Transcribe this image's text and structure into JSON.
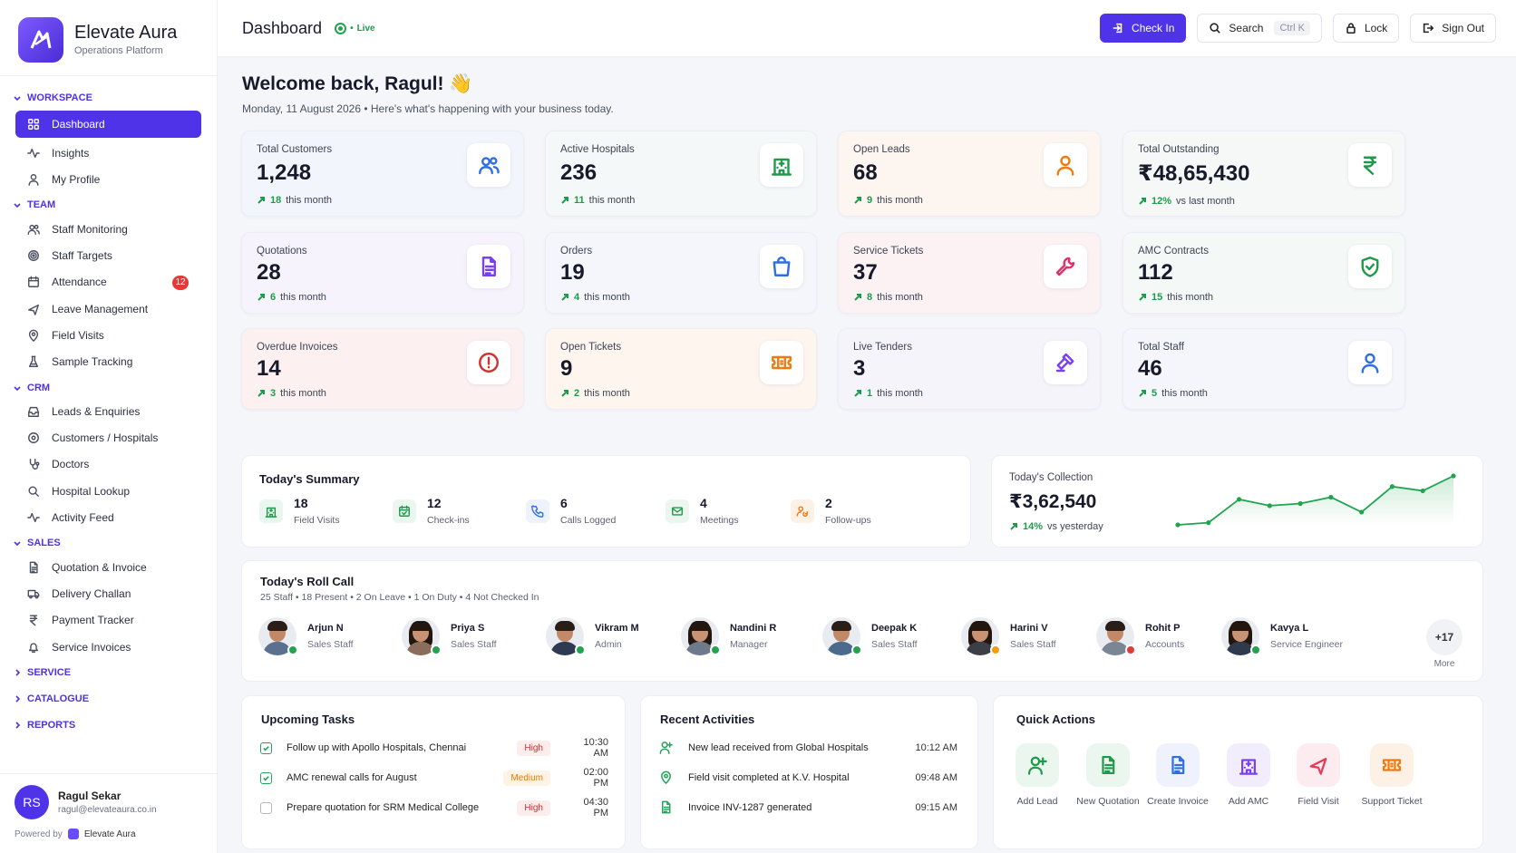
{
  "brand": {
    "title": "Elevate Aura",
    "subtitle": "Operations Platform"
  },
  "sidebar": {
    "sections": [
      {
        "label": "WORKSPACE",
        "expanded": true,
        "items": [
          {
            "label": "Dashboard",
            "icon": "grid-icon",
            "active": true
          },
          {
            "label": "Insights",
            "icon": "pulse-icon"
          },
          {
            "label": "My Profile",
            "icon": "user-icon"
          }
        ]
      },
      {
        "label": "TEAM",
        "expanded": true,
        "items": [
          {
            "label": "Staff Monitoring",
            "icon": "users-icon"
          },
          {
            "label": "Staff Targets",
            "icon": "target-icon"
          },
          {
            "label": "Attendance",
            "icon": "calendar-icon",
            "badge": "12"
          },
          {
            "label": "Leave Management",
            "icon": "plane-icon"
          },
          {
            "label": "Field Visits",
            "icon": "pin-icon"
          },
          {
            "label": "Sample Tracking",
            "icon": "flask-icon"
          }
        ]
      },
      {
        "label": "CRM",
        "expanded": true,
        "items": [
          {
            "label": "Leads & Enquiries",
            "icon": "inbox-icon"
          },
          {
            "label": "Customers / Hospitals",
            "icon": "circle-icon"
          },
          {
            "label": "Doctors",
            "icon": "stethoscope-icon"
          },
          {
            "label": "Hospital Lookup",
            "icon": "search-icon"
          },
          {
            "label": "Activity Feed",
            "icon": "pulse-icon"
          }
        ]
      },
      {
        "label": "SALES",
        "expanded": true,
        "items": [
          {
            "label": "Quotation & Invoice",
            "icon": "document-icon"
          },
          {
            "label": "Delivery Challan",
            "icon": "truck-icon"
          },
          {
            "label": "Payment Tracker",
            "icon": "rupee-icon"
          },
          {
            "label": "Service Invoices",
            "icon": "bell-icon"
          }
        ]
      },
      {
        "label": "SERVICE",
        "expanded": false,
        "items": []
      },
      {
        "label": "CATALOGUE",
        "expanded": false,
        "items": []
      },
      {
        "label": "REPORTS",
        "expanded": false,
        "items": []
      }
    ],
    "user": {
      "initials": "RS",
      "name": "Ragul Sekar",
      "email": "ragul@elevateaura.co.in"
    },
    "powered_by": "Powered by",
    "powered_brand": "Elevate Aura"
  },
  "topbar": {
    "title": "Dashboard",
    "live_label": "Live",
    "checkin_label": "Check In",
    "search_label": "Search",
    "search_shortcut": "Ctrl K",
    "lock_label": "Lock",
    "signout_label": "Sign Out"
  },
  "welcome": {
    "title": "Welcome back, Ragul! 👋",
    "subtitle": "Monday, 11 August 2026 • Here's what's happening with your business today."
  },
  "stats": [
    {
      "label": "Total Customers",
      "value": "1,248",
      "trend": "18",
      "trend_text": "this month",
      "icon": "users-icon",
      "color": "#2f6fe0",
      "bg": "#f3f5fd"
    },
    {
      "label": "Active Hospitals",
      "value": "236",
      "trend": "11",
      "trend_text": "this month",
      "icon": "hospital-icon",
      "color": "#1f9a4a",
      "bg": "#f4f8f8"
    },
    {
      "label": "Open Leads",
      "value": "68",
      "trend": "9",
      "trend_text": "this month",
      "icon": "user-icon",
      "color": "#f07a10",
      "bg": "#fdf6f0"
    },
    {
      "label": "Total Outstanding",
      "value": "₹48,65,430",
      "trend": "12%",
      "trend_text": "vs last month",
      "icon": "rupee-icon",
      "color": "#1f9a4a",
      "bg": "#f5f8f7"
    },
    {
      "label": "Quotations",
      "value": "28",
      "trend": "6",
      "trend_text": "this month",
      "icon": "document-icon",
      "color": "#7a3ff0",
      "bg": "#f6f3fd"
    },
    {
      "label": "Orders",
      "value": "19",
      "trend": "4",
      "trend_text": "this month",
      "icon": "bag-icon",
      "color": "#2f6fe0",
      "bg": "#f4f6fb"
    },
    {
      "label": "Service Tickets",
      "value": "37",
      "trend": "8",
      "trend_text": "this month",
      "icon": "wrench-icon",
      "color": "#e0306a",
      "bg": "#fcf1f3"
    },
    {
      "label": "AMC Contracts",
      "value": "112",
      "trend": "15",
      "trend_text": "this month",
      "icon": "shield-icon",
      "color": "#1f9a4a",
      "bg": "#f4f8f7"
    },
    {
      "label": "Overdue Invoices",
      "value": "14",
      "trend": "3",
      "trend_text": "this month",
      "icon": "alert-icon",
      "color": "#d32f2f",
      "bg": "#fcf0f0"
    },
    {
      "label": "Open Tickets",
      "value": "9",
      "trend": "2",
      "trend_text": "this month",
      "icon": "ticket-icon",
      "color": "#f07a10",
      "bg": "#fdf5ee"
    },
    {
      "label": "Live Tenders",
      "value": "3",
      "trend": "1",
      "trend_text": "this month",
      "icon": "gavel-icon",
      "color": "#7a3ff0",
      "bg": "#f5f4fb"
    },
    {
      "label": "Total Staff",
      "value": "46",
      "trend": "5",
      "trend_text": "this month",
      "icon": "user-icon",
      "color": "#2f6fe0",
      "bg": "#f4f6fb"
    }
  ],
  "summary": {
    "title": "Today's Summary",
    "items": [
      {
        "value": "18",
        "label": "Field Visits",
        "icon": "hospital-icon",
        "color": "#1f9a4a",
        "bg": "#eaf6ee"
      },
      {
        "value": "12",
        "label": "Check-ins",
        "icon": "calendar-check-icon",
        "color": "#1f9a4a",
        "bg": "#eaf6ee"
      },
      {
        "value": "6",
        "label": "Calls Logged",
        "icon": "phone-icon",
        "color": "#2f6fe0",
        "bg": "#edf2fd"
      },
      {
        "value": "4",
        "label": "Meetings",
        "icon": "mail-icon",
        "color": "#1f9a4a",
        "bg": "#eaf6ee"
      },
      {
        "value": "2",
        "label": "Follow-ups",
        "icon": "follow-up-icon",
        "color": "#f07a10",
        "bg": "#fdf1e6"
      }
    ]
  },
  "collection": {
    "label": "Today's Collection",
    "value": "₹3,62,540",
    "trend": "14%",
    "trend_text": "vs yesterday",
    "sparkline": [
      2,
      2.5,
      8,
      6.5,
      7,
      8.5,
      5,
      11,
      10,
      13.5
    ]
  },
  "rollcall": {
    "title": "Today's Roll Call",
    "subtitle": "25 Staff • 18 Present • 2 On Leave • 1 On Duty • 4 Not Checked In",
    "people": [
      {
        "name": "Arjun N",
        "role": "Sales Staff",
        "status_color": "#22a44f",
        "gender": "m",
        "shirt": "#5b6f8f"
      },
      {
        "name": "Priya S",
        "role": "Sales Staff",
        "status_color": "#22a44f",
        "gender": "f",
        "shirt": "#8a6d5a"
      },
      {
        "name": "Vikram M",
        "role": "Admin",
        "status_color": "#22a44f",
        "gender": "m",
        "shirt": "#2d3a52"
      },
      {
        "name": "Nandini R",
        "role": "Manager",
        "status_color": "#22a44f",
        "gender": "f",
        "shirt": "#6e7a8a"
      },
      {
        "name": "Deepak K",
        "role": "Sales Staff",
        "status_color": "#22a44f",
        "gender": "m",
        "shirt": "#4c6a8c"
      },
      {
        "name": "Harini V",
        "role": "Sales Staff",
        "status_color": "#f39c12",
        "gender": "f",
        "shirt": "#3d3f48"
      },
      {
        "name": "Rohit P",
        "role": "Accounts",
        "status_color": "#e53935",
        "gender": "m",
        "shirt": "#7a8694"
      },
      {
        "name": "Kavya L",
        "role": "Service Engineer",
        "status_color": "#22a44f",
        "gender": "f",
        "shirt": "#2f3a4c"
      }
    ],
    "more_count": "+17",
    "more_label": "More"
  },
  "tasks": {
    "title": "Upcoming Tasks",
    "items": [
      {
        "text": "Follow up with Apollo Hospitals, Chennai",
        "priority": "High",
        "time": "10:30 AM",
        "done": true
      },
      {
        "text": "AMC renewal calls for August",
        "priority": "Medium",
        "time": "02:00 PM",
        "done": true
      },
      {
        "text": "Prepare quotation for SRM Medical College",
        "priority": "High",
        "time": "04:30 PM",
        "done": false
      }
    ]
  },
  "activities": {
    "title": "Recent Activities",
    "items": [
      {
        "text": "New lead received from Global Hospitals",
        "time": "10:12 AM",
        "icon": "user-plus-icon"
      },
      {
        "text": "Field visit completed at K.V. Hospital",
        "time": "09:48 AM",
        "icon": "pin-icon"
      },
      {
        "text": "Invoice INV-1287 generated",
        "time": "09:15 AM",
        "icon": "document-icon"
      }
    ]
  },
  "quick_actions": {
    "title": "Quick Actions",
    "items": [
      {
        "label": "Add Lead",
        "icon": "user-plus-icon",
        "color": "#1f9a4a",
        "bg": "#eaf6ee"
      },
      {
        "label": "New Quotation",
        "icon": "document-icon",
        "color": "#1f9a4a",
        "bg": "#eaf6ee"
      },
      {
        "label": "Create Invoice",
        "icon": "document-icon",
        "color": "#2f6fe0",
        "bg": "#edf2fd"
      },
      {
        "label": "Add AMC",
        "icon": "hospital-icon",
        "color": "#7a3ff0",
        "bg": "#f2edfd"
      },
      {
        "label": "Field Visit",
        "icon": "plane-icon",
        "color": "#e53955",
        "bg": "#fdecef"
      },
      {
        "label": "Support Ticket",
        "icon": "ticket-icon",
        "color": "#f07a10",
        "bg": "#fdf1e6"
      }
    ]
  }
}
